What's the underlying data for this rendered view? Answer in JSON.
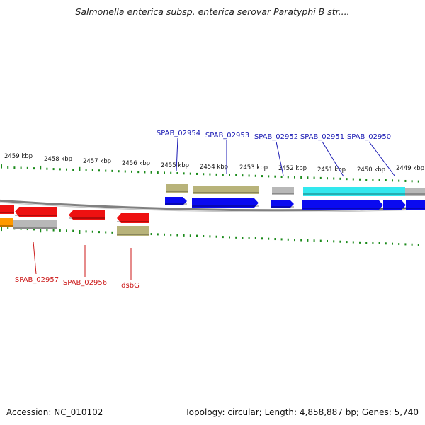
{
  "title": "Salmonella enterica subsp. enterica serovar Paratyphi B str....",
  "footer": {
    "accession": "Accession: NC_010102",
    "topology": "Topology: circular; Length: 4,858,887 bp; Genes: 5,740"
  },
  "colors": {
    "backbone": "#808080",
    "tick_green": "#1a8a1a",
    "forward_label": "#1a1ab4",
    "reverse_label": "#cc1a1a",
    "cds_blue": "#0a0af0",
    "cds_red": "#ee1111",
    "feature_olive": "#b8b37a",
    "feature_gray": "#b8b8b8",
    "feature_cyan": "#33e8ee",
    "feature_orange": "#ff9900"
  },
  "scale": {
    "unit": "kbp",
    "labels": [
      "2459 kbp",
      "2458 kbp",
      "2457 kbp",
      "2456 kbp",
      "2455 kbp",
      "2454 kbp",
      "2453 kbp",
      "2452 kbp",
      "2451 kbp",
      "2450 kbp",
      "2449 kbp"
    ]
  },
  "forward_genes": [
    "SPAB_02954",
    "SPAB_02953",
    "SPAB_02952",
    "SPAB_02951",
    "SPAB_02950"
  ],
  "reverse_genes": [
    "SPAB_02957",
    "SPAB_02956",
    "dsbG"
  ]
}
